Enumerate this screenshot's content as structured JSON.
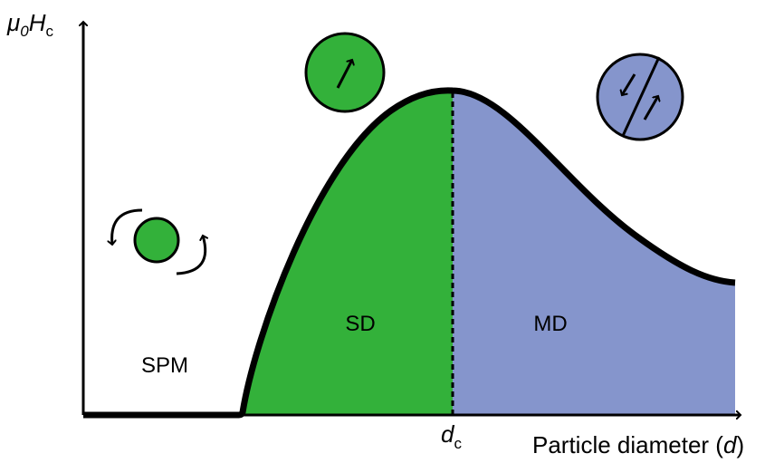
{
  "y_axis_label": {
    "symbol": "μ",
    "symbol_sub": "0",
    "field": "H",
    "field_sub": "c"
  },
  "x_axis_label": {
    "before": "Particle diameter (",
    "variable": "d",
    "after": ")"
  },
  "critical_diameter": {
    "symbol": "d",
    "sub": "c"
  },
  "regions": {
    "spm": "SPM",
    "sd": "SD",
    "md": "MD"
  }
}
